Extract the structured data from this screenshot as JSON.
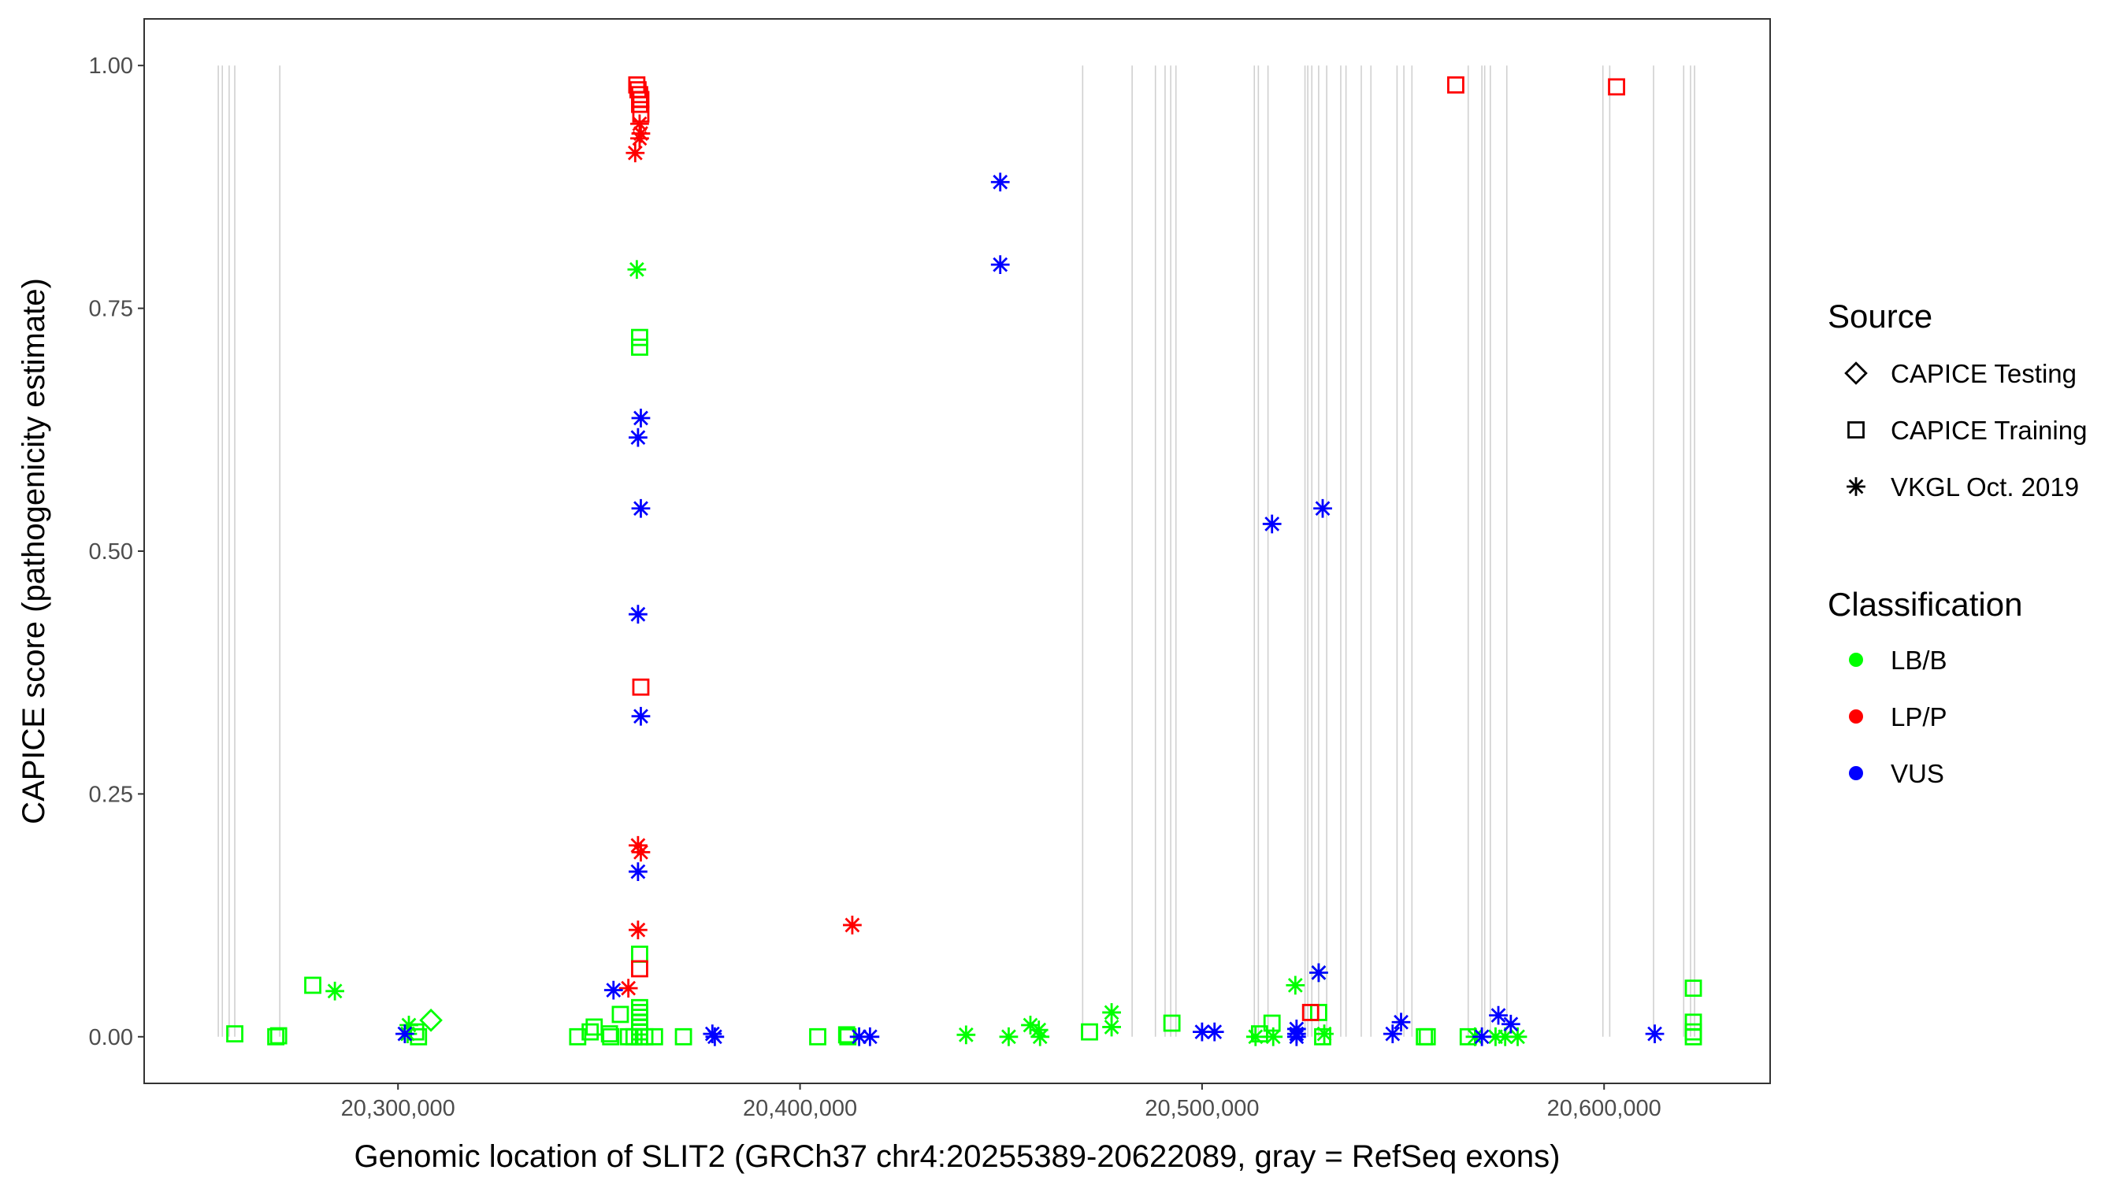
{
  "chart_data": {
    "type": "scatter",
    "xlabel": "Genomic location of SLIT2 (GRCh37 chr4:20255389-20622089, gray = RefSeq exons)",
    "ylabel": "CAPICE score (pathogenicity estimate)",
    "xlim": [
      20236860,
      20641300
    ],
    "ylim": [
      -0.048,
      1.048
    ],
    "x_ticks": [
      20300000,
      20400000,
      20500000,
      20600000
    ],
    "x_tick_labels": [
      "20,300,000",
      "20,400,000",
      "20,500,000",
      "20,600,000"
    ],
    "y_ticks": [
      0,
      0.25,
      0.5,
      0.75,
      1.0
    ],
    "y_tick_labels": [
      "0.00",
      "0.25",
      "0.50",
      "0.75",
      "1.00"
    ],
    "grid": false,
    "exon_color": "#d0d0d0",
    "exons": [
      20255300,
      20256300,
      20258000,
      20259400,
      20270600,
      20470300,
      20482600,
      20488400,
      20490800,
      20492200,
      20493500,
      20513000,
      20514000,
      20516400,
      20525600,
      20526300,
      20527300,
      20529000,
      20531000,
      20534500,
      20535800,
      20539600,
      20542000,
      20548500,
      20550200,
      20552200,
      20566200,
      20569600,
      20570300,
      20571700,
      20575800,
      20599700,
      20601400,
      20612300,
      20619800,
      20621500,
      20622500
    ],
    "legend": {
      "placement": "right",
      "source": {
        "title": "Source",
        "items": [
          {
            "label": "CAPICE Testing",
            "shape": "diamond"
          },
          {
            "label": "CAPICE Training",
            "shape": "square"
          },
          {
            "label": "VKGL Oct. 2019",
            "shape": "asterisk"
          }
        ]
      },
      "classification": {
        "title": "Classification",
        "items": [
          {
            "label": "LB/B",
            "color": "#00ff00"
          },
          {
            "label": "LP/P",
            "color": "#ff0000"
          },
          {
            "label": "VUS",
            "color": "#0000ff"
          }
        ]
      }
    },
    "series": [
      {
        "source": "CAPICE Training",
        "classification": "LB/B",
        "points": [
          [
            20360100,
            0.72
          ],
          [
            20360100,
            0.71
          ],
          [
            20360100,
            0.085
          ],
          [
            20355300,
            0.023
          ],
          [
            20360100,
            0.03
          ],
          [
            20360100,
            0.025
          ],
          [
            20360100,
            0.02
          ],
          [
            20360100,
            0.015
          ],
          [
            20360100,
            0.01
          ],
          [
            20360100,
            0.005
          ],
          [
            20360100,
            0
          ],
          [
            20348800,
            0.01
          ],
          [
            20347800,
            0.005
          ],
          [
            20344700,
            0
          ],
          [
            20352600,
            0.003
          ],
          [
            20352900,
            0
          ],
          [
            20357300,
            0
          ],
          [
            20358700,
            0
          ],
          [
            20361400,
            0
          ],
          [
            20363800,
            0
          ],
          [
            20371000,
            0
          ],
          [
            20278800,
            0.053
          ],
          [
            20259400,
            0.003
          ],
          [
            20269600,
            0
          ],
          [
            20270300,
            0.001
          ],
          [
            20304400,
            0.005
          ],
          [
            20305100,
            0
          ],
          [
            20404400,
            0
          ],
          [
            20411600,
            0.002
          ],
          [
            20411900,
            0
          ],
          [
            20472000,
            0.005
          ],
          [
            20492500,
            0.014
          ],
          [
            20514300,
            0.003
          ],
          [
            20517400,
            0.014
          ],
          [
            20529000,
            0.025
          ],
          [
            20530000,
            0
          ],
          [
            20555300,
            0
          ],
          [
            20556000,
            0
          ],
          [
            20566200,
            0
          ],
          [
            20622200,
            0.05
          ],
          [
            20622200,
            0.015
          ],
          [
            20622200,
            0.005
          ],
          [
            20622200,
            0
          ]
        ]
      },
      {
        "source": "CAPICE Training",
        "classification": "LP/P",
        "points": [
          [
            20359400,
            0.98
          ],
          [
            20359700,
            0.975
          ],
          [
            20360100,
            0.97
          ],
          [
            20360400,
            0.965
          ],
          [
            20360100,
            0.96
          ],
          [
            20360400,
            0.95
          ],
          [
            20360400,
            0.36
          ],
          [
            20360100,
            0.07
          ],
          [
            20563100,
            0.98
          ],
          [
            20603100,
            0.978
          ],
          [
            20527000,
            0.025
          ]
        ]
      },
      {
        "source": "CAPICE Testing",
        "classification": "LB/B",
        "points": [
          [
            20308200,
            0.017
          ]
        ]
      },
      {
        "source": "VKGL Oct. 2019",
        "classification": "LB/B",
        "points": [
          [
            20359400,
            0.79
          ],
          [
            20284300,
            0.047
          ],
          [
            20302700,
            0.012
          ],
          [
            20302400,
            0.003
          ],
          [
            20441300,
            0.002
          ],
          [
            20451900,
            0
          ],
          [
            20457300,
            0.012
          ],
          [
            20459400,
            0.007
          ],
          [
            20459700,
            0
          ],
          [
            20477500,
            0.025
          ],
          [
            20477500,
            0.01
          ],
          [
            20513300,
            0
          ],
          [
            20517700,
            0
          ],
          [
            20523200,
            0.053
          ],
          [
            20529000,
            0.066
          ],
          [
            20530400,
            0.003
          ],
          [
            20567900,
            0
          ],
          [
            20573000,
            0
          ],
          [
            20575400,
            0
          ],
          [
            20578500,
            0
          ]
        ]
      },
      {
        "source": "VKGL Oct. 2019",
        "classification": "LP/P",
        "points": [
          [
            20360100,
            0.94
          ],
          [
            20360400,
            0.93
          ],
          [
            20360100,
            0.925
          ],
          [
            20359000,
            0.91
          ],
          [
            20359700,
            0.197
          ],
          [
            20360400,
            0.19
          ],
          [
            20359700,
            0.11
          ],
          [
            20357300,
            0.05
          ],
          [
            20413000,
            0.115
          ]
        ]
      },
      {
        "source": "VKGL Oct. 2019",
        "classification": "VUS",
        "points": [
          [
            20360400,
            0.637
          ],
          [
            20359700,
            0.617
          ],
          [
            20360400,
            0.544
          ],
          [
            20359700,
            0.435
          ],
          [
            20360400,
            0.33
          ],
          [
            20359700,
            0.17
          ],
          [
            20353600,
            0.048
          ],
          [
            20378200,
            0.003
          ],
          [
            20378800,
            0
          ],
          [
            20449800,
            0.88
          ],
          [
            20449800,
            0.795
          ],
          [
            20517400,
            0.528
          ],
          [
            20530000,
            0.544
          ],
          [
            20301700,
            0.003
          ],
          [
            20414700,
            0
          ],
          [
            20417400,
            0
          ],
          [
            20500000,
            0.005
          ],
          [
            20503100,
            0.005
          ],
          [
            20523500,
            0.003
          ],
          [
            20523500,
            0.008
          ],
          [
            20523500,
            0
          ],
          [
            20529000,
            0.066
          ],
          [
            20547400,
            0.003
          ],
          [
            20549500,
            0.015
          ],
          [
            20569600,
            0
          ],
          [
            20573700,
            0.022
          ],
          [
            20576800,
            0.013
          ],
          [
            20612600,
            0.003
          ]
        ]
      }
    ]
  }
}
